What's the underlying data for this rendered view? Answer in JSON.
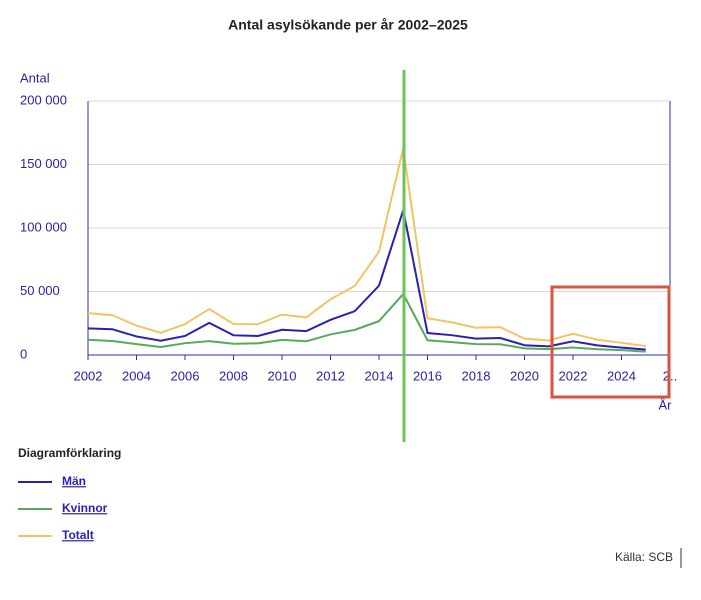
{
  "chart_data": {
    "type": "line",
    "title": "Antal asylsökande per år 2002–2025",
    "y_label": "Antal",
    "x_label": "År",
    "x": [
      2002,
      2003,
      2004,
      2005,
      2006,
      2007,
      2008,
      2009,
      2010,
      2011,
      2012,
      2013,
      2014,
      2015,
      2016,
      2017,
      2018,
      2019,
      2020,
      2021,
      2022,
      2023,
      2024,
      2025
    ],
    "series": [
      {
        "name": "Män",
        "color": "#2a1fb5",
        "values": [
          21000,
          20300,
          14600,
          11200,
          15000,
          25300,
          15500,
          15000,
          19900,
          18800,
          27700,
          34500,
          54600,
          114000,
          17300,
          15600,
          12900,
          13400,
          7700,
          6800,
          10800,
          7600,
          5800,
          4300
        ]
      },
      {
        "name": "Kvinnor",
        "color": "#5aa85a",
        "values": [
          12000,
          11000,
          8600,
          6300,
          9300,
          10900,
          8900,
          9200,
          11900,
          10800,
          16200,
          19800,
          26700,
          48000,
          11600,
          10100,
          8600,
          8500,
          5200,
          4600,
          5900,
          4500,
          3800,
          2700
        ]
      },
      {
        "name": "Totalt",
        "color": "#f2c462",
        "values": [
          33000,
          31300,
          23200,
          17500,
          24300,
          36200,
          24400,
          24200,
          31800,
          29600,
          43900,
          54300,
          81300,
          163000,
          28900,
          25700,
          21500,
          21900,
          12900,
          11400,
          16700,
          12100,
          9600,
          7000
        ]
      }
    ],
    "xlim": [
      2002,
      2026
    ],
    "xticks": [
      2002,
      2004,
      2006,
      2008,
      2010,
      2012,
      2014,
      2016,
      2018,
      2020,
      2022,
      2024,
      {
        "value": 2026,
        "label": "2.."
      }
    ],
    "ylim": [
      0,
      200000
    ],
    "yticks": [
      0,
      {
        "value": 50000,
        "label": "50 000"
      },
      {
        "value": 100000,
        "label": "100 000"
      },
      {
        "value": 150000,
        "label": "150 000"
      },
      {
        "value": 200000,
        "label": "200 000"
      }
    ],
    "grid": true,
    "legend_title": "Diagramförklaring",
    "source": "Källa: SCB"
  }
}
